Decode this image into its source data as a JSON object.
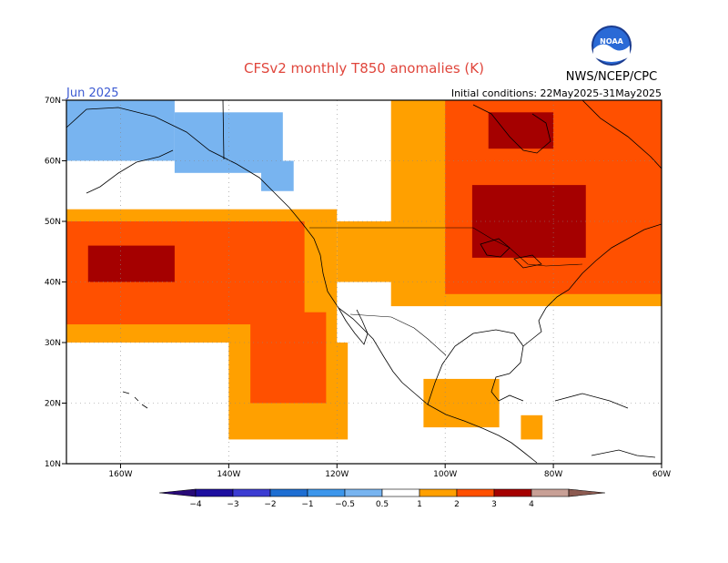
{
  "header": {
    "title": "CFSv2 monthly T850 anomalies (K)",
    "month": "Jun 2025",
    "initial_conditions": "Initial conditions: 22May2025-31May2025",
    "org": "NWS/NCEP/CPC",
    "logo_text": "NOAA"
  },
  "map": {
    "lon_range": [
      -170,
      -60
    ],
    "lat_range": [
      10,
      70
    ],
    "x_ticks": [
      {
        "v": -160,
        "label": "160W"
      },
      {
        "v": -140,
        "label": "140W"
      },
      {
        "v": -120,
        "label": "120W"
      },
      {
        "v": -100,
        "label": "100W"
      },
      {
        "v": -80,
        "label": "80W"
      },
      {
        "v": -60,
        "label": "60W"
      }
    ],
    "y_ticks": [
      {
        "v": 10,
        "label": "10N"
      },
      {
        "v": 20,
        "label": "20N"
      },
      {
        "v": 30,
        "label": "30N"
      },
      {
        "v": 40,
        "label": "40N"
      },
      {
        "v": 50,
        "label": "50N"
      },
      {
        "v": 60,
        "label": "60N"
      },
      {
        "v": 70,
        "label": "70N"
      }
    ],
    "regions": [
      {
        "level": "-1_to_-0.5",
        "color": "#78b4f0",
        "lon": [
          -170,
          -150
        ],
        "lat": [
          60,
          70
        ]
      },
      {
        "level": "-1_to_-0.5",
        "color": "#78b4f0",
        "lon": [
          -150,
          -130
        ],
        "lat": [
          58,
          68
        ]
      },
      {
        "level": "-1_to_-0.5",
        "color": "#78b4f0",
        "lon": [
          -134,
          -128
        ],
        "lat": [
          55,
          60
        ]
      },
      {
        "level": "0.5_to_1",
        "color": "#ffa000",
        "lon": [
          -170,
          -120
        ],
        "lat": [
          30,
          52
        ]
      },
      {
        "level": "0.5_to_1",
        "color": "#ffa000",
        "lon": [
          -140,
          -118
        ],
        "lat": [
          14,
          30
        ]
      },
      {
        "level": "1_to_2",
        "color": "#ff5000",
        "lon": [
          -170,
          -126
        ],
        "lat": [
          33,
          50
        ]
      },
      {
        "level": "1_to_2",
        "color": "#ff5000",
        "lon": [
          -136,
          -122
        ],
        "lat": [
          20,
          35
        ]
      },
      {
        "level": "2_to_3",
        "color": "#a50000",
        "lon": [
          -166,
          -150
        ],
        "lat": [
          40,
          46
        ]
      },
      {
        "level": "0.5_to_1",
        "color": "#ffa000",
        "lon": [
          -120,
          -95
        ],
        "lat": [
          40,
          50
        ]
      },
      {
        "level": "0.5_to_1",
        "color": "#ffa000",
        "lon": [
          -110,
          -60
        ],
        "lat": [
          36,
          70
        ]
      },
      {
        "level": "1_to_2",
        "color": "#ff5000",
        "lon": [
          -100,
          -60
        ],
        "lat": [
          38,
          70
        ]
      },
      {
        "level": "2_to_3",
        "color": "#a50000",
        "lon": [
          -92,
          -80
        ],
        "lat": [
          62,
          68
        ]
      },
      {
        "level": "2_to_3",
        "color": "#a50000",
        "lon": [
          -95,
          -74
        ],
        "lat": [
          44,
          56
        ]
      },
      {
        "level": "0.5_to_1",
        "color": "#ffa000",
        "lon": [
          -104,
          -90
        ],
        "lat": [
          16,
          24
        ]
      },
      {
        "level": "0.5_to_1",
        "color": "#ffa000",
        "lon": [
          -86,
          -82
        ],
        "lat": [
          14,
          18
        ]
      },
      {
        "level": "white_gap",
        "color": "#ffffff",
        "lon": [
          -110,
          -62
        ],
        "lat": [
          26,
          35
        ]
      }
    ]
  },
  "colorbar": {
    "levels": [
      {
        "label": "−4",
        "color": "#1e0fa0"
      },
      {
        "label": "−3",
        "color": "#3c3cd2"
      },
      {
        "label": "−2",
        "color": "#1e6ed2"
      },
      {
        "label": "−1",
        "color": "#3c96eb"
      },
      {
        "label": "−0.5",
        "color": "#78b4f0"
      },
      {
        "label": "0.5",
        "color": "#ffffff"
      },
      {
        "label": "1",
        "color": "#ffa000"
      },
      {
        "label": "2",
        "color": "#ff5000"
      },
      {
        "label": "3",
        "color": "#a50000"
      },
      {
        "label": "4",
        "color": "#c8a096"
      }
    ],
    "low_end_color": "#280a78",
    "high_end_color": "#8c5a50"
  }
}
